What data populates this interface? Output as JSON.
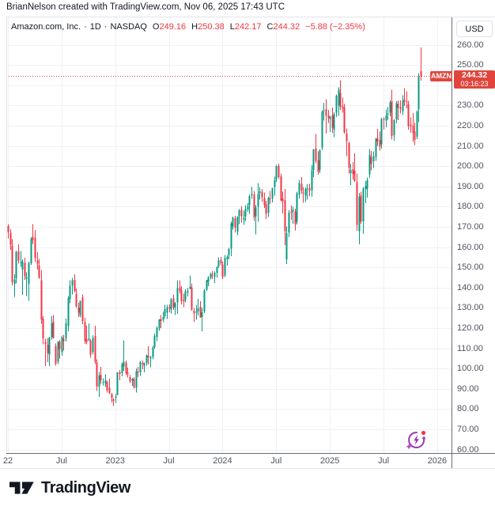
{
  "attribution": "BrianNelson created with TradingView.com, Nov 06, 2025 17:43 UTC",
  "legend": {
    "symbol": "Amazon.com, Inc.",
    "dot1": "·",
    "interval": "1D",
    "dot2": "·",
    "exchange": "NASDAQ",
    "o_label": "O",
    "o_value": "249.16",
    "h_label": "H",
    "h_value": "250.38",
    "l_label": "L",
    "l_value": "242.17",
    "c_label": "C",
    "c_value": "244.32",
    "change": "−5.88 (−2.35%)"
  },
  "price_axis": {
    "currency": "USD",
    "ticks": [
      "260.00",
      "250.00",
      "230.00",
      "220.00",
      "210.00",
      "200.00",
      "190.00",
      "180.00",
      "170.00",
      "160.00",
      "150.00",
      "140.00",
      "130.00",
      "120.00",
      "110.00",
      "100.00",
      "90.00",
      "80.00",
      "70.00",
      "60.00"
    ],
    "last_price_label": {
      "symbol": "AMZN",
      "price": "244.32",
      "countdown": "03:16:23"
    }
  },
  "time_axis": {
    "ticks": [
      {
        "label": "22",
        "week": 0
      },
      {
        "label": "Jul",
        "week": 26
      },
      {
        "label": "2023",
        "week": 52
      },
      {
        "label": "Jul",
        "week": 78
      },
      {
        "label": "2024",
        "week": 104
      },
      {
        "label": "Jul",
        "week": 130
      },
      {
        "label": "2025",
        "week": 156
      },
      {
        "label": "Jul",
        "week": 182
      },
      {
        "label": "2026",
        "week": 208
      }
    ]
  },
  "footer": {
    "brand": "TradingView"
  },
  "icons": {
    "overlay": "lightning-refresh",
    "logo": "tradingview-mark"
  },
  "colors": {
    "up": "#089981",
    "down": "#f23645",
    "flag_bg": "#e0453c",
    "grid": "#eef1f6",
    "frame": "#e0e3eb",
    "axis_line": "#6a6d78",
    "axis_text": "#50535e",
    "text": "#131722",
    "purple": "#9c36b5"
  },
  "chart_data": {
    "type": "candlestick",
    "title": "Amazon.com, Inc., 1D, NASDAQ",
    "symbol": "AMZN",
    "interval": "1D",
    "currency": "USD",
    "ylim": [
      60,
      260
    ],
    "grid_step": 10,
    "last_price": 244.32,
    "last_bar": {
      "open": 249.16,
      "high": 250.38,
      "low": 242.17,
      "close": 244.32,
      "change": -5.88,
      "change_pct": -2.35
    },
    "x_start": "2022-01",
    "x_end": "2025-11",
    "x_tick_labels": [
      "22",
      "Jul",
      "2023",
      "Jul",
      "2024",
      "Jul",
      "2025",
      "Jul",
      "2026"
    ],
    "x_unit": "week",
    "weekly_ohlc": [
      [
        170.4,
        171.4,
        164.2,
        167.5
      ],
      [
        167.0,
        168.8,
        158.7,
        161.2
      ],
      [
        160.5,
        163.9,
        141.0,
        142.6
      ],
      [
        141.9,
        146.6,
        135.4,
        143.9
      ],
      [
        144.5,
        158.2,
        142.1,
        157.6
      ],
      [
        157.8,
        161.4,
        151.8,
        153.3
      ],
      [
        152.6,
        158.1,
        150.2,
        152.6
      ],
      [
        148.9,
        153.9,
        136.4,
        153.0
      ],
      [
        152.1,
        154.7,
        143.8,
        145.6
      ],
      [
        144.3,
        147.5,
        135.8,
        145.1
      ],
      [
        141.9,
        152.8,
        133.5,
        152.2
      ],
      [
        151.9,
        164.8,
        151.3,
        164.1
      ],
      [
        165.0,
        171.4,
        161.5,
        163.6
      ],
      [
        164.5,
        168.4,
        152.6,
        154.5
      ],
      [
        153.4,
        157.4,
        148.9,
        151.7
      ],
      [
        150.8,
        154.1,
        144.4,
        144.8
      ],
      [
        143.5,
        148.7,
        122.2,
        124.3
      ],
      [
        124.6,
        125.9,
        111.9,
        114.8
      ],
      [
        113.2,
        114.6,
        101.3,
        112.2
      ],
      [
        111.7,
        115.1,
        103.1,
        107.6
      ],
      [
        106.9,
        115.7,
        101.3,
        115.2
      ],
      [
        115.5,
        125.8,
        114.3,
        122.4
      ],
      [
        123.0,
        126.5,
        114.8,
        115.0
      ],
      [
        111.1,
        112.3,
        101.4,
        102.3
      ],
      [
        103.4,
        113.5,
        102.2,
        113.2
      ],
      [
        113.4,
        114.1,
        104.9,
        109.6
      ],
      [
        108.1,
        116.2,
        106.3,
        115.5
      ],
      [
        114.6,
        116.6,
        108.8,
        113.5
      ],
      [
        114.9,
        124.6,
        113.3,
        122.4
      ],
      [
        121.2,
        135.7,
        118.4,
        134.9
      ],
      [
        134.5,
        143.6,
        132.2,
        140.8
      ],
      [
        141.1,
        144.8,
        136.5,
        143.5
      ],
      [
        143.7,
        146.6,
        137.8,
        138.2
      ],
      [
        136.8,
        139.5,
        129.9,
        130.8
      ],
      [
        130.2,
        132.4,
        125.5,
        127.5
      ],
      [
        126.3,
        133.6,
        125.2,
        133.3
      ],
      [
        135.0,
        136.5,
        121.9,
        123.5
      ],
      [
        122.9,
        125.0,
        112.1,
        113.8
      ],
      [
        114.5,
        121.1,
        112.0,
        113.0
      ],
      [
        114.0,
        122.3,
        113.6,
        114.6
      ],
      [
        113.7,
        114.5,
        105.4,
        106.9
      ],
      [
        108.2,
        116.5,
        107.0,
        115.1
      ],
      [
        116.0,
        121.1,
        102.3,
        103.4
      ],
      [
        103.0,
        104.6,
        89.0,
        91.0
      ],
      [
        91.1,
        98.3,
        85.9,
        96.6
      ],
      [
        96.9,
        100.8,
        92.5,
        94.1
      ],
      [
        93.2,
        95.1,
        91.6,
        93.4
      ],
      [
        92.7,
        97.2,
        90.9,
        94.1
      ],
      [
        93.2,
        94.0,
        88.1,
        89.1
      ],
      [
        90.4,
        94.9,
        87.3,
        87.9
      ],
      [
        87.4,
        88.0,
        83.2,
        85.3
      ],
      [
        84.8,
        85.4,
        81.4,
        84.0
      ],
      [
        85.5,
        87.4,
        83.0,
        86.1
      ],
      [
        87.0,
        98.3,
        86.7,
        98.1
      ],
      [
        98.0,
        99.3,
        94.2,
        97.3
      ],
      [
        97.6,
        102.9,
        96.1,
        102.2
      ],
      [
        101.1,
        114.0,
        98.8,
        103.4
      ],
      [
        102.9,
        104.0,
        96.8,
        97.6
      ],
      [
        98.0,
        100.5,
        95.6,
        97.2
      ],
      [
        95.7,
        96.9,
        92.8,
        93.5
      ],
      [
        93.9,
        95.4,
        91.5,
        94.9
      ],
      [
        94.7,
        95.7,
        90.1,
        90.7
      ],
      [
        90.4,
        100.0,
        88.1,
        98.7
      ],
      [
        98.4,
        100.8,
        95.7,
        98.1
      ],
      [
        98.0,
        103.5,
        96.3,
        103.3
      ],
      [
        102.8,
        103.9,
        99.6,
        102.1
      ],
      [
        101.4,
        102.9,
        98.0,
        102.5
      ],
      [
        102.8,
        106.9,
        101.4,
        106.4
      ],
      [
        106.3,
        110.9,
        101.9,
        105.5
      ],
      [
        104.9,
        106.3,
        100.6,
        105.7
      ],
      [
        105.8,
        111.2,
        104.6,
        110.3
      ],
      [
        110.6,
        117.2,
        109.9,
        116.3
      ],
      [
        115.6,
        120.8,
        113.6,
        120.1
      ],
      [
        119.7,
        124.5,
        118.6,
        124.3
      ],
      [
        124.4,
        126.4,
        119.9,
        123.4
      ],
      [
        124.1,
        128.0,
        122.9,
        125.5
      ],
      [
        125.9,
        131.5,
        124.9,
        129.3
      ],
      [
        127.5,
        131.4,
        124.5,
        130.4
      ],
      [
        130.3,
        131.6,
        127.8,
        129.8
      ],
      [
        129.1,
        134.8,
        127.1,
        134.3
      ],
      [
        134.6,
        136.6,
        129.0,
        130.0
      ],
      [
        130.3,
        132.8,
        126.4,
        132.2
      ],
      [
        132.6,
        143.6,
        126.9,
        139.6
      ],
      [
        140.1,
        143.5,
        137.2,
        138.4
      ],
      [
        138.6,
        140.6,
        131.7,
        133.2
      ],
      [
        134.0,
        136.9,
        130.3,
        133.3
      ],
      [
        134.1,
        139.1,
        132.7,
        138.1
      ],
      [
        137.5,
        139.8,
        135.5,
        138.2
      ],
      [
        139.5,
        145.9,
        139.1,
        140.4
      ],
      [
        140.0,
        142.0,
        128.5,
        129.1
      ],
      [
        128.6,
        130.0,
        123.0,
        127.1
      ],
      [
        127.7,
        131.3,
        124.1,
        127.9
      ],
      [
        128.2,
        134.5,
        126.2,
        129.8
      ],
      [
        130.5,
        133.2,
        125.0,
        125.2
      ],
      [
        125.5,
        130.0,
        118.4,
        127.7
      ],
      [
        128.2,
        139.3,
        127.3,
        138.6
      ],
      [
        139.0,
        143.7,
        138.3,
        143.6
      ],
      [
        142.9,
        145.5,
        140.6,
        145.2
      ],
      [
        145.0,
        147.3,
        144.0,
        146.7
      ],
      [
        146.4,
        148.0,
        144.1,
        146.1
      ],
      [
        145.3,
        147.8,
        142.2,
        147.4
      ],
      [
        147.3,
        150.6,
        145.0,
        150.0
      ],
      [
        150.5,
        155.0,
        149.7,
        153.4
      ],
      [
        153.6,
        155.2,
        151.0,
        151.9
      ],
      [
        151.5,
        152.7,
        144.1,
        145.2
      ],
      [
        146.0,
        156.0,
        145.2,
        154.6
      ],
      [
        153.9,
        156.1,
        150.9,
        155.3
      ],
      [
        156.0,
        159.7,
        153.9,
        159.1
      ],
      [
        159.3,
        172.5,
        155.6,
        171.8
      ],
      [
        170.2,
        175.0,
        168.6,
        174.5
      ],
      [
        174.2,
        175.4,
        167.3,
        169.5
      ],
      [
        167.7,
        175.2,
        165.9,
        175.0
      ],
      [
        175.3,
        178.7,
        171.4,
        178.2
      ],
      [
        178.4,
        180.1,
        172.2,
        175.3
      ],
      [
        173.5,
        178.0,
        170.9,
        174.4
      ],
      [
        175.0,
        180.7,
        172.7,
        178.9
      ],
      [
        178.6,
        181.7,
        177.4,
        180.4
      ],
      [
        180.8,
        185.9,
        176.5,
        185.1
      ],
      [
        185.5,
        189.8,
        183.9,
        186.1
      ],
      [
        186.0,
        187.7,
        172.8,
        174.6
      ],
      [
        175.3,
        180.8,
        166.3,
        179.6
      ],
      [
        180.0,
        191.7,
        172.5,
        186.2
      ],
      [
        186.5,
        189.5,
        183.5,
        187.5
      ],
      [
        187.3,
        188.7,
        182.5,
        184.7
      ],
      [
        184.3,
        186.9,
        179.3,
        180.8
      ],
      [
        181.1,
        182.9,
        173.9,
        176.4
      ],
      [
        177.0,
        185.0,
        174.9,
        184.3
      ],
      [
        184.1,
        187.7,
        181.2,
        183.7
      ],
      [
        184.1,
        189.3,
        182.0,
        189.1
      ],
      [
        189.7,
        194.8,
        185.4,
        193.3
      ],
      [
        193.5,
        200.6,
        192.2,
        200.0
      ],
      [
        200.1,
        201.2,
        193.8,
        194.5
      ],
      [
        194.9,
        196.4,
        182.6,
        183.1
      ],
      [
        184.1,
        187.3,
        176.6,
        182.5
      ],
      [
        183.2,
        188.8,
        161.0,
        167.9
      ],
      [
        154.0,
        170.1,
        151.6,
        166.9
      ],
      [
        167.3,
        178.1,
        164.8,
        177.0
      ],
      [
        177.5,
        180.5,
        173.5,
        177.0
      ],
      [
        177.6,
        180.0,
        171.5,
        178.5
      ],
      [
        177.5,
        178.9,
        168.3,
        171.4
      ],
      [
        172.5,
        187.4,
        171.1,
        186.5
      ],
      [
        186.0,
        193.0,
        184.1,
        191.6
      ],
      [
        191.2,
        194.5,
        186.4,
        188.0
      ],
      [
        187.0,
        189.5,
        181.9,
        186.5
      ],
      [
        185.3,
        189.4,
        182.3,
        188.8
      ],
      [
        188.6,
        191.1,
        183.5,
        189.0
      ],
      [
        189.1,
        191.3,
        185.2,
        187.8
      ],
      [
        188.1,
        200.5,
        184.8,
        197.9
      ],
      [
        198.1,
        208.4,
        194.5,
        208.2
      ],
      [
        208.7,
        215.9,
        201.5,
        202.6
      ],
      [
        203.0,
        207.3,
        195.8,
        197.1
      ],
      [
        198.1,
        208.3,
        196.5,
        207.9
      ],
      [
        209.3,
        227.5,
        207.8,
        227.0
      ],
      [
        227.2,
        231.2,
        222.5,
        227.5
      ],
      [
        228.1,
        233.0,
        216.1,
        224.9
      ],
      [
        225.1,
        227.8,
        221.4,
        223.8
      ],
      [
        223.3,
        224.9,
        216.8,
        224.2
      ],
      [
        225.0,
        229.0,
        216.5,
        218.9
      ],
      [
        218.0,
        226.6,
        214.2,
        225.9
      ],
      [
        226.5,
        235.3,
        224.3,
        234.9
      ],
      [
        230.0,
        238.9,
        224.8,
        237.7
      ],
      [
        236.2,
        242.5,
        227.7,
        229.2
      ],
      [
        229.6,
        233.9,
        226.4,
        228.7
      ],
      [
        228.9,
        230.8,
        216.0,
        216.6
      ],
      [
        216.0,
        218.6,
        205.0,
        212.3
      ],
      [
        211.4,
        212.2,
        196.3,
        199.3
      ],
      [
        196.6,
        201.0,
        190.7,
        198.0
      ],
      [
        198.5,
        201.9,
        193.4,
        196.2
      ],
      [
        197.7,
        206.2,
        192.2,
        192.7
      ],
      [
        192.0,
        196.3,
        168.0,
        171.0
      ],
      [
        167.8,
        186.8,
        161.4,
        184.9
      ],
      [
        185.5,
        187.4,
        171.6,
        172.6
      ],
      [
        172.6,
        189.7,
        166.7,
        189.0
      ],
      [
        188.6,
        192.7,
        181.7,
        190.0
      ],
      [
        189.0,
        194.4,
        184.5,
        193.1
      ],
      [
        196.0,
        208.5,
        194.1,
        205.6
      ],
      [
        204.6,
        207.5,
        197.9,
        201.0
      ],
      [
        202.4,
        207.2,
        199.0,
        205.0
      ],
      [
        204.5,
        214.0,
        202.5,
        213.6
      ],
      [
        214.0,
        218.4,
        210.0,
        212.1
      ],
      [
        213.0,
        217.1,
        207.7,
        209.7
      ],
      [
        210.8,
        223.8,
        208.6,
        223.3
      ],
      [
        223.5,
        224.0,
        218.0,
        223.4
      ],
      [
        222.5,
        228.0,
        219.2,
        225.0
      ],
      [
        225.4,
        229.1,
        222.8,
        226.1
      ],
      [
        226.5,
        232.6,
        224.7,
        231.4
      ],
      [
        232.0,
        237.7,
        213.2,
        214.8
      ],
      [
        215.3,
        223.3,
        212.5,
        222.7
      ],
      [
        223.0,
        232.0,
        221.1,
        231.0
      ],
      [
        230.7,
        232.4,
        222.6,
        228.8
      ],
      [
        229.2,
        232.5,
        226.0,
        228.3
      ],
      [
        227.2,
        235.0,
        225.3,
        232.3
      ],
      [
        233.0,
        238.5,
        229.8,
        231.6
      ],
      [
        231.9,
        236.9,
        228.5,
        231.5
      ],
      [
        230.6,
        232.3,
        218.0,
        219.8
      ],
      [
        220.5,
        224.0,
        216.5,
        219.5
      ],
      [
        220.0,
        226.2,
        212.0,
        216.4
      ],
      [
        217.0,
        221.5,
        210.3,
        213.0
      ],
      [
        214.5,
        227.5,
        213.3,
        227.0
      ],
      [
        228.0,
        246.0,
        221.7,
        244.2
      ],
      [
        247.0,
        258.6,
        242.2,
        244.3
      ]
    ]
  }
}
